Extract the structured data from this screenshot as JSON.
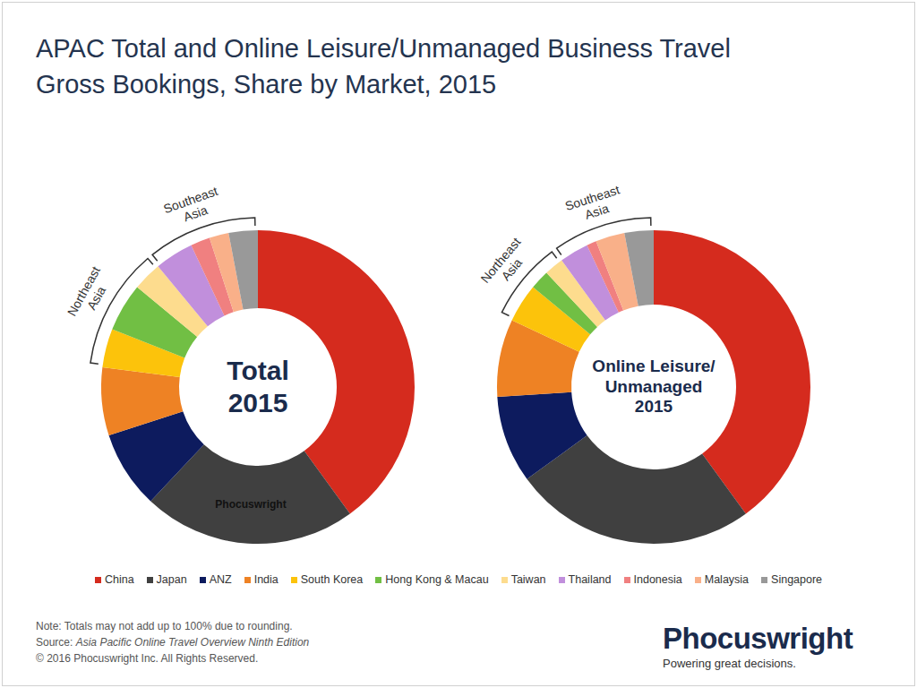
{
  "title": [
    "APAC Total and Online Leisure/Unmanaged Business Travel",
    "Gross Bookings, Share by Market, 2015"
  ],
  "chart_data": [
    {
      "type": "pie",
      "center_label": [
        "Total",
        "2015"
      ],
      "watermark": "Phocuswright",
      "categories": [
        "China",
        "Japan",
        "ANZ",
        "India",
        "South Korea",
        "Hong Kong & Macau",
        "Taiwan",
        "Thailand",
        "Indonesia",
        "Malaysia",
        "Singapore"
      ],
      "values": [
        40,
        22,
        8,
        7,
        4,
        5,
        3,
        4,
        2,
        2,
        3
      ],
      "colors": [
        "#d52b1e",
        "#404040",
        "#0d1b5e",
        "#ee8224",
        "#fcc30b",
        "#71bf44",
        "#fddc8e",
        "#c18fdc",
        "#f08080",
        "#f9b089",
        "#999999"
      ],
      "groups": [
        {
          "label": [
            "Northeast",
            "Asia"
          ],
          "categories": [
            "South Korea",
            "Hong Kong & Macau",
            "Taiwan"
          ]
        },
        {
          "label": [
            "Southeast",
            "Asia"
          ],
          "categories": [
            "Thailand",
            "Indonesia",
            "Malaysia",
            "Singapore"
          ]
        }
      ],
      "legend": "bottom",
      "data_labels": false
    },
    {
      "type": "pie",
      "center_label": [
        "Online Leisure/",
        "Unmanaged",
        "2015"
      ],
      "categories": [
        "China",
        "Japan",
        "ANZ",
        "India",
        "South Korea",
        "Hong Kong & Macau",
        "Taiwan",
        "Thailand",
        "Indonesia",
        "Malaysia",
        "Singapore"
      ],
      "values": [
        40,
        25,
        9,
        8,
        4,
        2,
        2,
        3,
        1,
        3,
        3
      ],
      "colors": [
        "#d52b1e",
        "#404040",
        "#0d1b5e",
        "#ee8224",
        "#fcc30b",
        "#71bf44",
        "#fddc8e",
        "#c18fdc",
        "#f08080",
        "#f9b089",
        "#999999"
      ],
      "groups": [
        {
          "label": [
            "Northeast",
            "Asia"
          ],
          "categories": [
            "South Korea",
            "Hong Kong & Macau",
            "Taiwan"
          ]
        },
        {
          "label": [
            "Southeast",
            "Asia"
          ],
          "categories": [
            "Thailand",
            "Indonesia",
            "Malaysia",
            "Singapore"
          ]
        }
      ],
      "data_labels": false
    }
  ],
  "footer": {
    "note": "Note: Totals may not add up to 100% due to rounding.",
    "source": [
      "Source: ",
      "Asia Pacific Online Travel Overview Ninth Edition"
    ],
    "copyright": "© 2016 Phocuswright Inc. All Rights Reserved."
  },
  "logo": {
    "name": "Phocuswright",
    "tagline": "Powering great decisions."
  }
}
